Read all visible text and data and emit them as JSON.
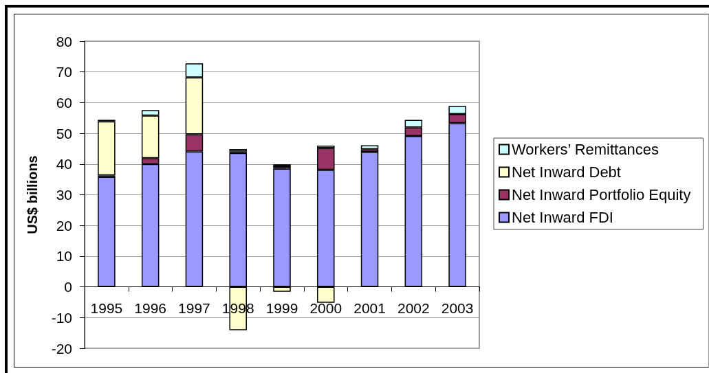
{
  "chart_data": {
    "type": "bar",
    "stacked": true,
    "ylabel": "US$ billions",
    "categories": [
      "1995",
      "1996",
      "1997",
      "1998",
      "1999",
      "2000",
      "2001",
      "2002",
      "2003"
    ],
    "series": [
      {
        "name": "Net Inward FDI",
        "color": "#9999ff",
        "values": [
          35.8,
          40.0,
          44.1,
          43.6,
          38.5,
          38.1,
          43.9,
          49.1,
          53.3
        ]
      },
      {
        "name": "Net Inward Portfolio Equity",
        "color": "#993366",
        "values": [
          0.5,
          1.9,
          5.6,
          0.5,
          0.8,
          7.1,
          0.9,
          2.8,
          3.0
        ]
      },
      {
        "name": "Net Inward Debt",
        "color": "#ffffcc",
        "values": [
          17.6,
          13.9,
          18.5,
          -14.1,
          -1.6,
          -5.2,
          null,
          null,
          null
        ]
      },
      {
        "name": "Workers’ Remittances",
        "color": "#ccffff",
        "values": [
          0.5,
          1.8,
          4.6,
          0.8,
          0.6,
          0.8,
          1.3,
          2.5,
          2.6
        ]
      }
    ],
    "ylim": [
      -20,
      80
    ],
    "yticks": [
      -20,
      -10,
      0,
      10,
      20,
      30,
      40,
      50,
      60,
      70,
      80
    ],
    "grid": "y",
    "legend": "right"
  }
}
